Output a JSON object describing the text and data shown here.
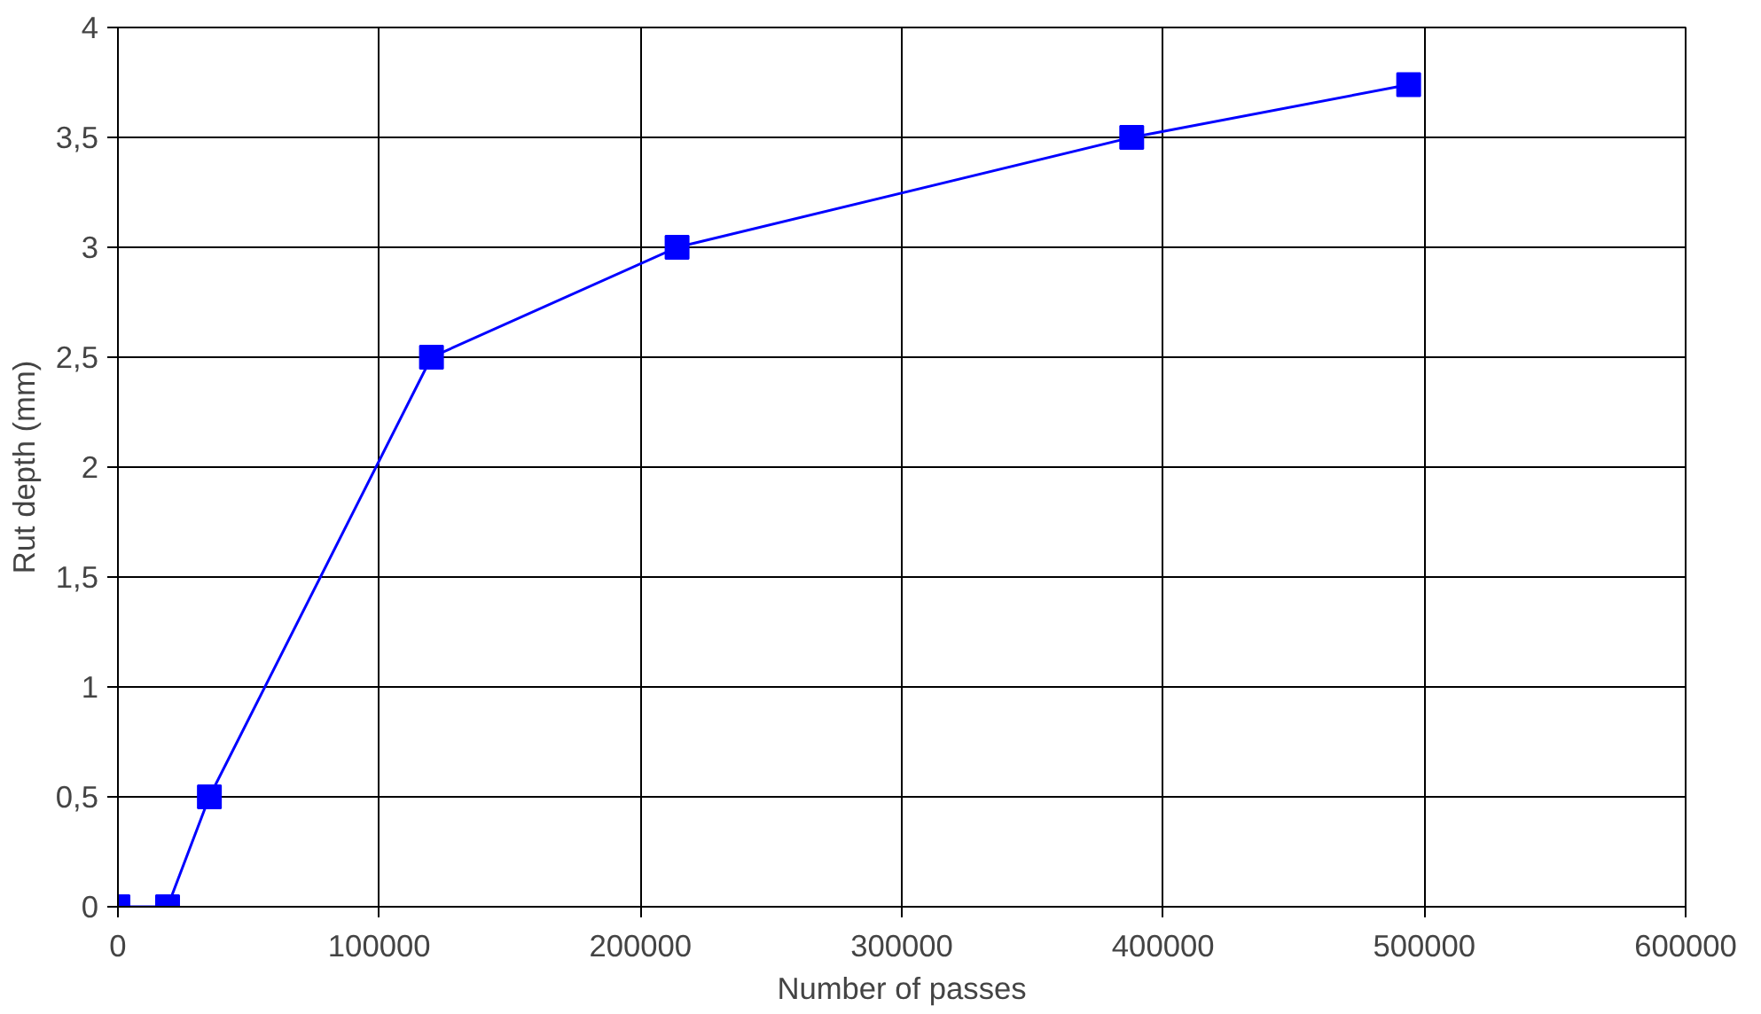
{
  "chart_data": {
    "type": "line",
    "xlabel": "Number of passes",
    "ylabel": "Rut depth (mm)",
    "x": [
      0,
      19000,
      35000,
      120000,
      214000,
      388000,
      494000
    ],
    "series": [
      {
        "color": "#0000ff",
        "values": [
          0,
          0,
          0.5,
          2.5,
          3.0,
          3.5,
          3.74
        ]
      }
    ],
    "xlim": [
      0,
      600000
    ],
    "xticks": [
      0,
      100000,
      200000,
      300000,
      400000,
      500000,
      600000
    ],
    "ylim": [
      0,
      4
    ],
    "yticks": [
      0,
      {
        "value": 0.5,
        "label": "0,5"
      },
      1,
      {
        "value": 1.5,
        "label": "1,5"
      },
      2,
      {
        "value": 2.5,
        "label": "2,5"
      },
      3,
      {
        "value": 3.5,
        "label": "3,5"
      },
      4
    ],
    "grid": true,
    "marker": "square",
    "line_style": "solid"
  }
}
